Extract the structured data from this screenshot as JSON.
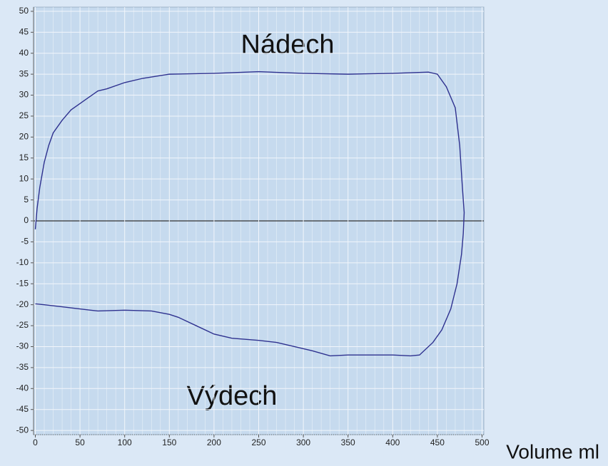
{
  "chart_data": {
    "type": "line",
    "x_label": "Volume ml",
    "annotations": [
      "Nádech",
      "Výdech"
    ],
    "x": [
      0,
      2,
      5,
      10,
      15,
      20,
      30,
      40,
      50,
      60,
      70,
      80,
      100,
      120,
      150,
      200,
      250,
      300,
      350,
      400,
      440,
      450,
      460,
      470,
      475,
      478,
      480,
      479,
      477,
      472,
      465,
      455,
      445,
      430,
      420,
      400,
      350,
      330,
      310,
      290,
      270,
      250,
      220,
      200,
      180,
      160,
      150,
      130,
      100,
      70,
      50,
      30,
      10,
      0
    ],
    "series": [
      {
        "color": "#2e318f",
        "values": [
          -2,
          3,
          8,
          14,
          18,
          21,
          24,
          26.5,
          28,
          29.5,
          31,
          31.5,
          33,
          34,
          35,
          35.2,
          35.6,
          35.2,
          35,
          35.2,
          35.5,
          35,
          32,
          27,
          18,
          8,
          2,
          -3,
          -8,
          -15,
          -21,
          -26,
          -29,
          -32,
          -32.2,
          -32,
          -32,
          -32.2,
          -31,
          -30,
          -29,
          -28.5,
          -28,
          -27,
          -25,
          -23,
          -22.3,
          -21.5,
          -21.3,
          -21.5,
          -21,
          -20.5,
          -20,
          -19.8
        ]
      }
    ],
    "xlim": [
      -2,
      502
    ],
    "ylim": [
      -51,
      51
    ],
    "xticks": [
      0,
      50,
      100,
      150,
      200,
      250,
      300,
      350,
      400,
      450,
      500
    ],
    "yticks": [
      -50,
      -45,
      -40,
      -35,
      -30,
      -25,
      -20,
      -15,
      -10,
      -5,
      0,
      5,
      10,
      15,
      20,
      25,
      30,
      35,
      40,
      45,
      50
    ],
    "grid": true
  }
}
